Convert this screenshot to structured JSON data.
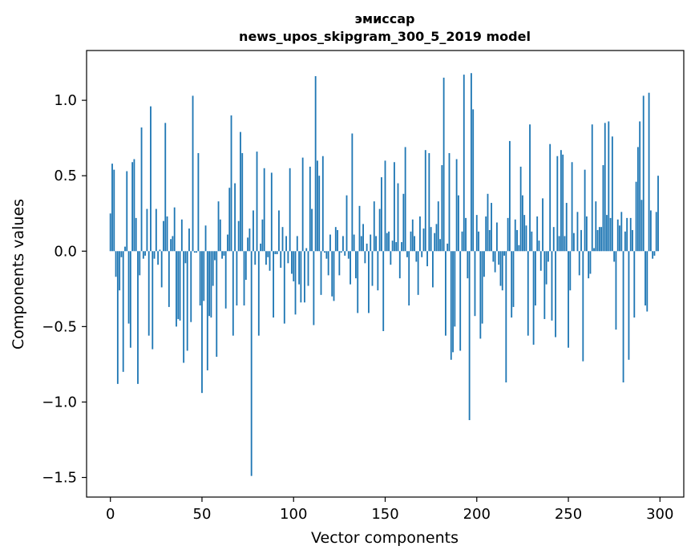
{
  "chart_data": {
    "type": "bar",
    "title": "эмиссар",
    "subtitle": "news_upos_skipgram_300_5_2019 model",
    "xlabel": "Vector components",
    "ylabel": "Components values",
    "xlim": [
      -13,
      313
    ],
    "ylim": [
      -1.63,
      1.33
    ],
    "xticks": [
      0,
      50,
      100,
      150,
      200,
      250,
      300
    ],
    "xtick_labels": [
      "0",
      "50",
      "100",
      "150",
      "200",
      "250",
      "300"
    ],
    "yticks": [
      -1.5,
      -1.0,
      -0.5,
      0.0,
      0.5,
      1.0
    ],
    "ytick_labels": [
      "−1.5",
      "−1.0",
      "−0.5",
      "0.0",
      "0.5",
      "1.0"
    ],
    "color": "#1f77b4",
    "grid": false,
    "values": [
      0.25,
      0.58,
      0.54,
      -0.17,
      -0.88,
      -0.26,
      -0.04,
      -0.8,
      0.03,
      0.53,
      -0.48,
      -0.64,
      0.59,
      0.61,
      0.22,
      -0.88,
      -0.16,
      0.82,
      -0.05,
      -0.03,
      0.28,
      -0.56,
      0.96,
      -0.65,
      -0.05,
      0.28,
      -0.09,
      0.01,
      -0.24,
      0.2,
      0.85,
      0.23,
      -0.37,
      0.08,
      0.1,
      0.29,
      -0.5,
      -0.45,
      -0.46,
      0.21,
      -0.74,
      -0.08,
      -0.66,
      0.15,
      -0.47,
      1.03,
      -0.01,
      -0.01,
      0.65,
      -0.36,
      -0.94,
      -0.33,
      0.17,
      -0.79,
      -0.43,
      -0.44,
      -0.23,
      -0.06,
      -0.7,
      0.33,
      0.21,
      -0.05,
      -0.03,
      -0.38,
      0.11,
      0.42,
      0.9,
      -0.56,
      0.45,
      -0.36,
      0.2,
      0.79,
      0.65,
      -0.36,
      -0.19,
      0.09,
      0.15,
      -1.49,
      0.27,
      -0.09,
      0.66,
      -0.56,
      0.05,
      0.21,
      0.55,
      -0.09,
      -0.04,
      -0.13,
      0.52,
      -0.44,
      -0.02,
      -0.02,
      0.27,
      -0.11,
      0.16,
      -0.48,
      0.1,
      -0.08,
      0.55,
      -0.15,
      -0.2,
      -0.42,
      0.1,
      -0.22,
      -0.34,
      0.62,
      -0.34,
      0.02,
      -0.23,
      0.56,
      0.28,
      -0.49,
      1.16,
      0.6,
      0.5,
      -0.29,
      0.63,
      -0.01,
      -0.05,
      -0.16,
      0.11,
      -0.3,
      -0.33,
      0.16,
      0.14,
      -0.16,
      -0.01,
      0.1,
      -0.03,
      0.37,
      -0.05,
      -0.22,
      0.78,
      0.11,
      -0.18,
      -0.41,
      0.3,
      0.1,
      0.18,
      -0.08,
      0.05,
      -0.41,
      0.11,
      -0.23,
      0.33,
      0.1,
      -0.26,
      0.28,
      0.49,
      -0.53,
      0.6,
      0.12,
      0.13,
      -0.09,
      0.07,
      0.59,
      0.06,
      0.45,
      -0.18,
      0.06,
      0.38,
      0.69,
      -0.04,
      -0.36,
      0.13,
      0.21,
      0.1,
      -0.07,
      -0.29,
      0.23,
      -0.04,
      0.15,
      0.67,
      -0.1,
      0.65,
      0.16,
      -0.24,
      0.12,
      0.18,
      0.33,
      0.08,
      0.57,
      1.15,
      -0.56,
      0.05,
      0.65,
      -0.72,
      -0.67,
      -0.5,
      0.61,
      0.37,
      -0.66,
      0.13,
      1.17,
      0.22,
      -0.18,
      -1.12,
      1.18,
      0.94,
      -0.43,
      0.24,
      0.13,
      -0.58,
      -0.48,
      -0.17,
      0.23,
      0.38,
      0.14,
      0.32,
      -0.07,
      -0.14,
      0.19,
      -0.09,
      -0.23,
      -0.26,
      -0.03,
      -0.87,
      0.22,
      0.73,
      -0.44,
      -0.37,
      0.21,
      0.14,
      0.04,
      0.56,
      0.37,
      0.24,
      0.17,
      -0.56,
      0.84,
      0.13,
      -0.62,
      -0.36,
      0.23,
      0.07,
      -0.13,
      0.35,
      -0.45,
      -0.22,
      -0.07,
      0.71,
      -0.46,
      0.16,
      -0.57,
      0.63,
      0.1,
      0.67,
      0.64,
      0.1,
      0.32,
      -0.64,
      -0.26,
      0.59,
      0.12,
      0.0,
      0.26,
      -0.16,
      0.14,
      -0.73,
      0.54,
      0.23,
      -0.18,
      -0.15,
      0.84,
      0.02,
      0.33,
      0.14,
      0.16,
      0.16,
      0.57,
      0.85,
      0.24,
      0.86,
      0.22,
      0.76,
      -0.07,
      -0.52,
      0.21,
      0.17,
      0.26,
      -0.87,
      0.13,
      0.22,
      -0.72,
      0.22,
      0.14,
      -0.44,
      0.46,
      0.69,
      0.86,
      0.34,
      1.03,
      -0.36,
      -0.4,
      1.05,
      0.27,
      -0.05,
      -0.03,
      0.26,
      0.5
    ]
  }
}
